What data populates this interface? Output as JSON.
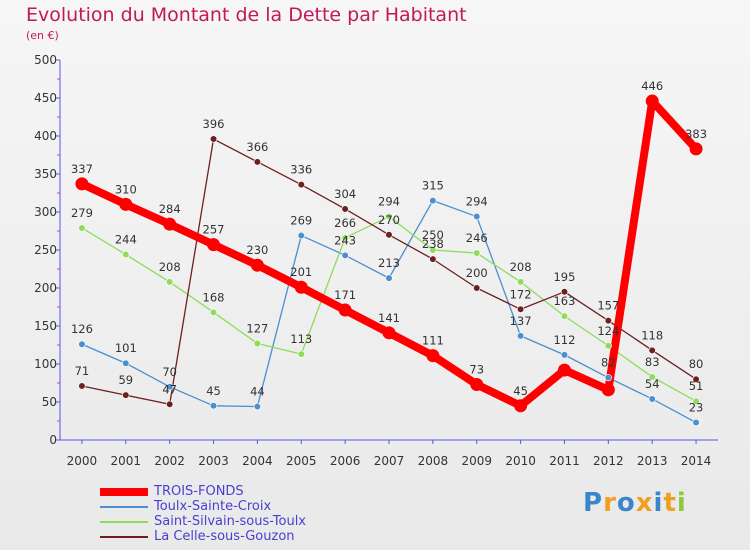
{
  "title": "Evolution du Montant de la Dette par Habitant",
  "subtitle": "(en €)",
  "logo": "Proxiti",
  "chart_data": {
    "type": "line",
    "x": [
      2000,
      2001,
      2002,
      2003,
      2004,
      2005,
      2006,
      2007,
      2008,
      2009,
      2010,
      2011,
      2012,
      2013,
      2014
    ],
    "ylim": [
      0,
      500
    ],
    "yticks": [
      0,
      50,
      100,
      150,
      200,
      250,
      300,
      350,
      400,
      450,
      500
    ],
    "grid": false,
    "legend": "bottom-left",
    "series": [
      {
        "name": "TROIS-FONDS",
        "color": "#ff0000",
        "values": [
          337,
          310,
          284,
          257,
          230,
          201,
          171,
          141,
          111,
          73,
          45,
          92,
          66,
          446,
          383
        ],
        "labels": [
          "337",
          "310",
          "284",
          "257",
          "230",
          "201",
          "171",
          "141",
          "111",
          "73",
          "45",
          "",
          "",
          "446",
          "383"
        ]
      },
      {
        "name": "Toulx-Sainte-Croix",
        "color": "#4a8fd0",
        "values": [
          126,
          101,
          70,
          45,
          44,
          269,
          243,
          213,
          315,
          294,
          137,
          112,
          82,
          54,
          23
        ],
        "labels": [
          "126",
          "101",
          "70",
          "45",
          "44",
          "269",
          "243",
          "213",
          "315",
          "294",
          "137",
          "112",
          "82",
          "54",
          "23"
        ]
      },
      {
        "name": "Saint-Silvain-sous-Toulx",
        "color": "#8fdc5a",
        "values": [
          279,
          244,
          208,
          168,
          127,
          113,
          266,
          294,
          250,
          246,
          208,
          163,
          124,
          83,
          51
        ],
        "labels": [
          "279",
          "244",
          "208",
          "168",
          "127",
          "113",
          "266",
          "294",
          "250",
          "246",
          "208",
          "163",
          "124",
          "83",
          "51"
        ]
      },
      {
        "name": "La Celle-sous-Gouzon",
        "color": "#6e1f1f",
        "values": [
          71,
          59,
          47,
          396,
          366,
          336,
          304,
          270,
          238,
          200,
          172,
          195,
          157,
          118,
          80
        ],
        "labels": [
          "71",
          "59",
          "47",
          "396",
          "366",
          "336",
          "304",
          "270",
          "238",
          "200",
          "172",
          "195",
          "157",
          "118",
          "80"
        ]
      }
    ]
  }
}
